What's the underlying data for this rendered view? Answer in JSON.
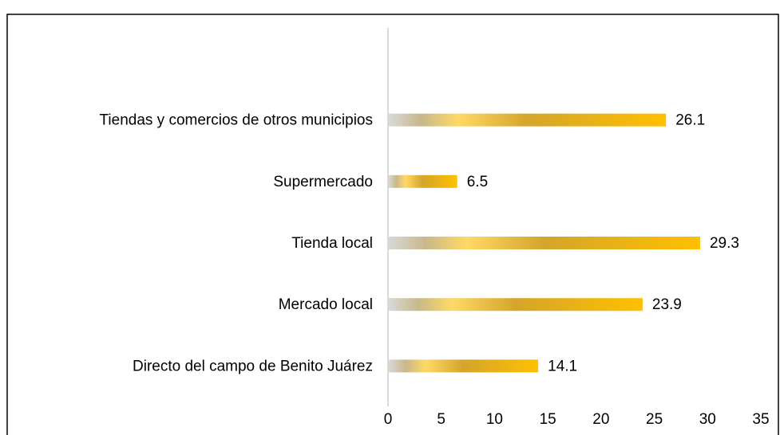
{
  "chart_data": {
    "type": "bar",
    "orientation": "horizontal",
    "categories": [
      "Tiendas y comercios de otros municipios",
      "Supermercado",
      "Tienda local",
      "Mercado local",
      "Directo del campo de Benito Juárez"
    ],
    "values": [
      26.1,
      6.5,
      29.3,
      23.9,
      14.1
    ],
    "color": "#ffc000",
    "xlim": [
      0,
      35
    ],
    "xticks": [
      0,
      5,
      10,
      15,
      20,
      25,
      30,
      35
    ],
    "grid": false
  }
}
